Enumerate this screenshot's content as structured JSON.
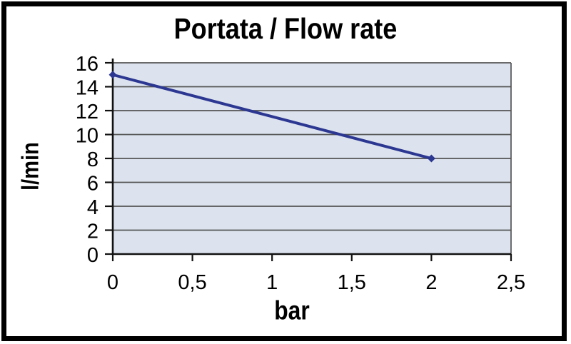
{
  "chart_data": {
    "type": "line",
    "title": "Portata / Flow rate",
    "xlabel": "bar",
    "ylabel": "l/min",
    "xlim": [
      0,
      2.5
    ],
    "ylim": [
      0,
      16
    ],
    "xticks": [
      0,
      0.5,
      1,
      1.5,
      2,
      2.5
    ],
    "xtick_labels": [
      "0",
      "0,5",
      "1",
      "1,5",
      "2",
      "2,5"
    ],
    "yticks": [
      0,
      2,
      4,
      6,
      8,
      10,
      12,
      14,
      16
    ],
    "ytick_labels": [
      "0",
      "2",
      "4",
      "6",
      "8",
      "10",
      "12",
      "14",
      "16"
    ],
    "grid": "horizontal",
    "legend": "none",
    "marker": "diamond",
    "series": [
      {
        "name": "Portata / Flow rate",
        "x": [
          0,
          2
        ],
        "y": [
          15,
          8
        ]
      }
    ],
    "colors": {
      "line": "#2c3792",
      "marker": "#2c3792",
      "plot_background": "#dce3ee",
      "gridline": "#555555",
      "axis": "#111111",
      "text": "#000000",
      "frame_border": "#000000"
    }
  }
}
